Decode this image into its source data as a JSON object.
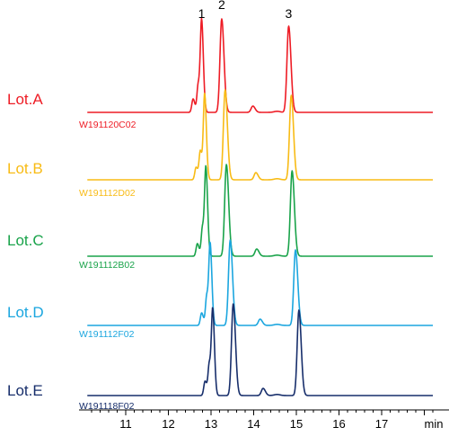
{
  "chart_data": {
    "type": "line",
    "title": "",
    "xlabel": "",
    "ylabel": "",
    "x_unit_label": "min",
    "xlim": [
      10.1,
      18.2
    ],
    "xticks": [
      11,
      12,
      13,
      14,
      15,
      16,
      17
    ],
    "grid": false,
    "legend": "none",
    "peak_labels": [
      {
        "label": "1",
        "x": 12.78
      },
      {
        "label": "2",
        "x": 13.25
      },
      {
        "label": "3",
        "x": 14.82
      }
    ],
    "series": [
      {
        "name": "Lot.A",
        "batch": "W191120C02",
        "color": "#ee1c25",
        "peaks": [
          {
            "x": 12.58,
            "height": 0.15,
            "width": 0.03
          },
          {
            "x": 12.7,
            "height": 0.31,
            "width": 0.03
          },
          {
            "x": 12.78,
            "height": 1.0,
            "width": 0.03
          },
          {
            "x": 13.25,
            "height": 1.04,
            "width": 0.04
          },
          {
            "x": 13.98,
            "height": 0.07,
            "width": 0.04
          },
          {
            "x": 14.82,
            "height": 0.96,
            "width": 0.04
          }
        ]
      },
      {
        "name": "Lot.B",
        "batch": "W191112D02",
        "color": "#f8bb15",
        "peaks": [
          {
            "x": 12.65,
            "height": 0.14,
            "width": 0.03
          },
          {
            "x": 12.75,
            "height": 0.32,
            "width": 0.03
          },
          {
            "x": 12.85,
            "height": 0.95,
            "width": 0.03
          },
          {
            "x": 13.33,
            "height": 1.0,
            "width": 0.04
          },
          {
            "x": 14.05,
            "height": 0.08,
            "width": 0.04
          },
          {
            "x": 14.88,
            "height": 0.94,
            "width": 0.04
          }
        ]
      },
      {
        "name": "Lot.C",
        "batch": "W191112B02",
        "color": "#19a34a",
        "peaks": [
          {
            "x": 12.68,
            "height": 0.14,
            "width": 0.03
          },
          {
            "x": 12.8,
            "height": 0.32,
            "width": 0.03
          },
          {
            "x": 12.88,
            "height": 0.96,
            "width": 0.03
          },
          {
            "x": 13.36,
            "height": 1.02,
            "width": 0.04
          },
          {
            "x": 14.07,
            "height": 0.08,
            "width": 0.04
          },
          {
            "x": 14.9,
            "height": 0.95,
            "width": 0.04
          }
        ]
      },
      {
        "name": "Lot.D",
        "batch": "W191112F02",
        "color": "#1ba6df",
        "peaks": [
          {
            "x": 12.78,
            "height": 0.14,
            "width": 0.03
          },
          {
            "x": 12.9,
            "height": 0.33,
            "width": 0.03
          },
          {
            "x": 12.98,
            "height": 0.88,
            "width": 0.03
          },
          {
            "x": 13.45,
            "height": 0.95,
            "width": 0.04
          },
          {
            "x": 14.15,
            "height": 0.07,
            "width": 0.04
          },
          {
            "x": 14.98,
            "height": 0.84,
            "width": 0.04
          }
        ]
      },
      {
        "name": "Lot.E",
        "batch": "W191118F02",
        "color": "#172e6b",
        "peaks": [
          {
            "x": 12.86,
            "height": 0.16,
            "width": 0.03
          },
          {
            "x": 12.96,
            "height": 0.35,
            "width": 0.03
          },
          {
            "x": 13.04,
            "height": 0.93,
            "width": 0.03
          },
          {
            "x": 13.52,
            "height": 1.02,
            "width": 0.04
          },
          {
            "x": 14.22,
            "height": 0.08,
            "width": 0.04
          },
          {
            "x": 15.06,
            "height": 0.95,
            "width": 0.04
          }
        ]
      }
    ]
  }
}
